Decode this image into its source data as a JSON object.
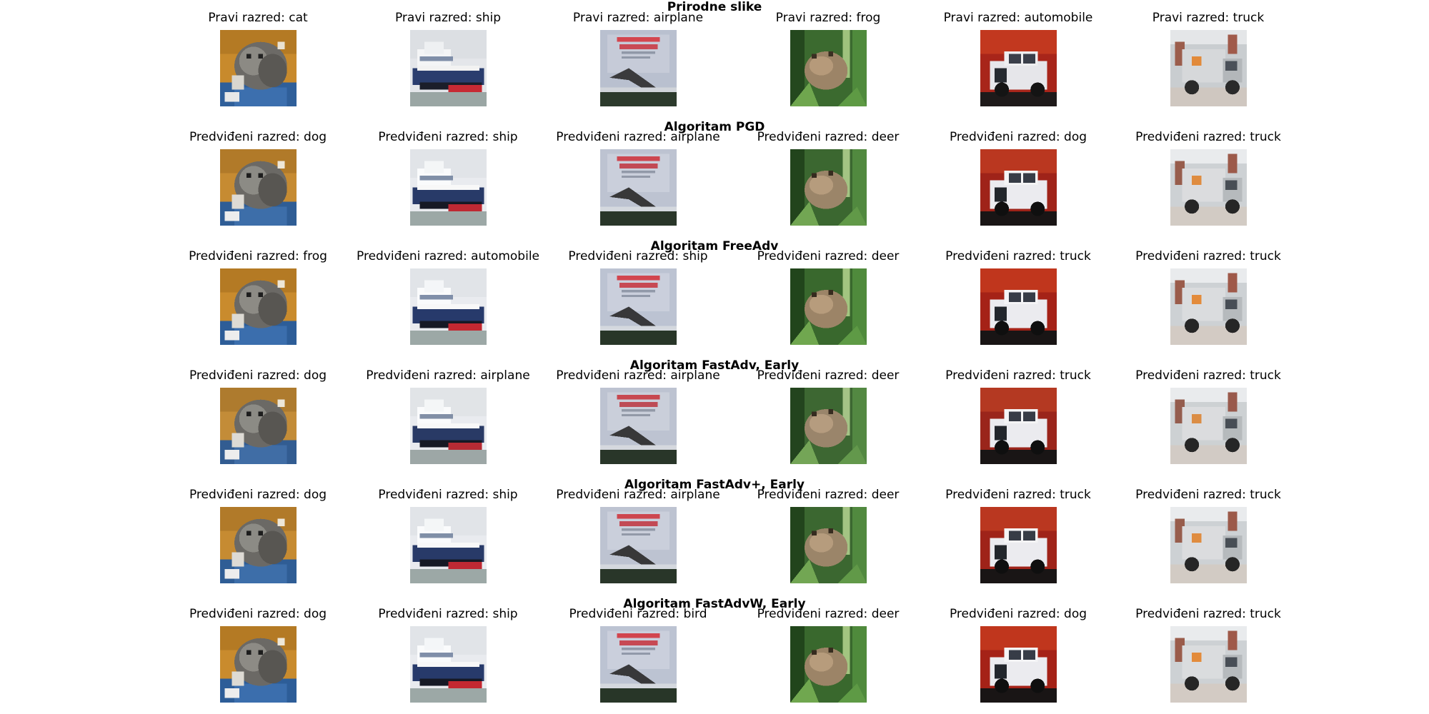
{
  "rows": [
    {
      "title": "Prirodne slike",
      "captions": [
        "Pravi razred: cat",
        "Pravi razred: ship",
        "Pravi razred: airplane",
        "Pravi razred: frog",
        "Pravi razred: automobile",
        "Pravi razred: truck"
      ]
    },
    {
      "title": "Algoritam PGD",
      "captions": [
        "Predviđeni razred: dog",
        "Predviđeni razred: ship",
        "Predviđeni razred: airplane",
        "Predviđeni razred: deer",
        "Predviđeni razred: dog",
        "Predviđeni razred: truck"
      ]
    },
    {
      "title": "Algoritam FreeAdv",
      "captions": [
        "Predviđeni razred: frog",
        "Predviđeni razred: automobile",
        "Predviđeni razred: ship",
        "Predviđeni razred: deer",
        "Predviđeni razred: truck",
        "Predviđeni razred: truck"
      ]
    },
    {
      "title": "Algoritam FastAdv, Early",
      "captions": [
        "Predviđeni razred: dog",
        "Predviđeni razred: airplane",
        "Predviđeni razred: airplane",
        "Predviđeni razred: deer",
        "Predviđeni razred: truck",
        "Predviđeni razred: truck"
      ]
    },
    {
      "title": "Algoritam FastAdv+, Early",
      "captions": [
        "Predviđeni razred: dog",
        "Predviđeni razred: ship",
        "Predviđeni razred: airplane",
        "Predviđeni razred: deer",
        "Predviđeni razred: truck",
        "Predviđeni razred: truck"
      ]
    },
    {
      "title": "Algoritam FastAdvW, Early",
      "captions": [
        "Predviđeni razred: dog",
        "Predviđeni razred: ship",
        "Predviđeni razred: bird",
        "Predviđeni razred: deer",
        "Predviđeni razred: dog",
        "Predviđeni razred: truck"
      ]
    }
  ],
  "images": [
    "cat",
    "ship",
    "airplane",
    "frog",
    "automobile",
    "truck"
  ]
}
